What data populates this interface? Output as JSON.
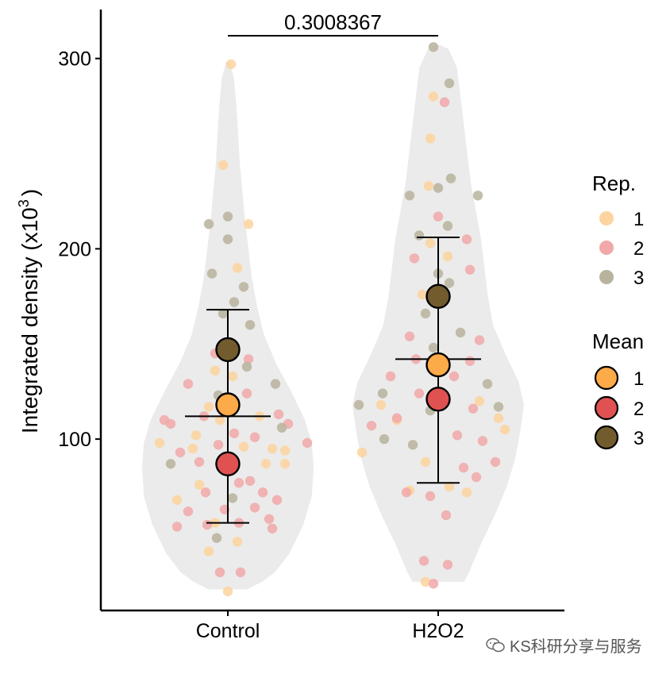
{
  "chart_data": {
    "type": "violin-dotplot",
    "categories": [
      "Control",
      "H2O2"
    ],
    "ylabel_main": "Integrated density (x10",
    "ylabel_sup": "3",
    "ylabel_end": ")",
    "xlabel": "",
    "ylim": [
      15,
      320
    ],
    "yticks": [
      "100",
      "200",
      "300"
    ],
    "ytick_values": [
      100,
      200,
      300
    ],
    "comparison": {
      "label": "0.3008367",
      "from": "Control",
      "to": "H2O2"
    },
    "rep_colors": {
      "1": "#FDD49E",
      "2": "#F1A8A8",
      "3": "#B7B39C"
    },
    "mean_colors": {
      "1": "#FDAA48",
      "2": "#E05252",
      "3": "#725C2E"
    },
    "legend": {
      "rep_title": "Rep.",
      "rep_entries": [
        "1",
        "2",
        "3"
      ],
      "mean_title": "Mean",
      "mean_entries": [
        "1",
        "2",
        "3"
      ]
    },
    "summary": [
      {
        "group": "Control",
        "mean": 112,
        "lower": 56,
        "upper": 168
      },
      {
        "group": "H2O2",
        "mean": 142,
        "lower": 77,
        "upper": 206
      }
    ],
    "replicate_means": [
      {
        "group": "Control",
        "rep": "1",
        "value": 118
      },
      {
        "group": "Control",
        "rep": "2",
        "value": 87
      },
      {
        "group": "Control",
        "rep": "3",
        "value": 147
      },
      {
        "group": "H2O2",
        "rep": "1",
        "value": 139
      },
      {
        "group": "H2O2",
        "rep": "2",
        "value": 121
      },
      {
        "group": "H2O2",
        "rep": "3",
        "value": 175
      }
    ],
    "violins": [
      {
        "group": "Control",
        "y": [
          21,
          25,
          30,
          40,
          55,
          70,
          85,
          98,
          110,
          125,
          140,
          155,
          170,
          185,
          200,
          215,
          230,
          245,
          260,
          275,
          290,
          298
        ],
        "width": [
          0.22,
          0.4,
          0.55,
          0.72,
          0.88,
          0.98,
          1.0,
          0.98,
          0.9,
          0.74,
          0.56,
          0.42,
          0.34,
          0.28,
          0.24,
          0.2,
          0.17,
          0.14,
          0.12,
          0.1,
          0.07,
          0.02
        ]
      },
      {
        "group": "H2O2",
        "y": [
          25,
          30,
          45,
          60,
          75,
          90,
          105,
          118,
          130,
          145,
          160,
          175,
          190,
          205,
          220,
          235,
          250,
          265,
          280,
          295,
          305,
          307
        ],
        "width": [
          0.3,
          0.36,
          0.5,
          0.66,
          0.8,
          0.9,
          0.96,
          1.0,
          0.94,
          0.78,
          0.64,
          0.58,
          0.54,
          0.5,
          0.44,
          0.38,
          0.34,
          0.3,
          0.26,
          0.22,
          0.12,
          0.02
        ]
      }
    ],
    "points": [
      {
        "g": "Control",
        "r": "1",
        "x": -0.43,
        "y": 98
      },
      {
        "g": "Control",
        "r": "1",
        "x": -0.32,
        "y": 68
      },
      {
        "g": "Control",
        "r": "1",
        "x": -0.22,
        "y": 95
      },
      {
        "g": "Control",
        "r": "1",
        "x": -0.2,
        "y": 102
      },
      {
        "g": "Control",
        "r": "1",
        "x": -0.18,
        "y": 76
      },
      {
        "g": "Control",
        "r": "1",
        "x": -0.12,
        "y": 117
      },
      {
        "g": "Control",
        "r": "1",
        "x": -0.12,
        "y": 41
      },
      {
        "g": "Control",
        "r": "1",
        "x": -0.08,
        "y": 56
      },
      {
        "g": "Control",
        "r": "1",
        "x": -0.03,
        "y": 244
      },
      {
        "g": "Control",
        "r": "1",
        "x": -0.08,
        "y": 136
      },
      {
        "g": "Control",
        "r": "1",
        "x": 0.0,
        "y": 20
      },
      {
        "g": "Control",
        "r": "1",
        "x": 0.02,
        "y": 297
      },
      {
        "g": "Control",
        "r": "1",
        "x": 0.03,
        "y": 133
      },
      {
        "g": "Control",
        "r": "1",
        "x": 0.06,
        "y": 190
      },
      {
        "g": "Control",
        "r": "1",
        "x": 0.06,
        "y": 46
      },
      {
        "g": "Control",
        "r": "1",
        "x": 0.13,
        "y": 213
      },
      {
        "g": "Control",
        "r": "1",
        "x": 0.2,
        "y": 112
      },
      {
        "g": "Control",
        "r": "1",
        "x": 0.24,
        "y": 87
      },
      {
        "g": "Control",
        "r": "1",
        "x": 0.28,
        "y": 95
      },
      {
        "g": "Control",
        "r": "1",
        "x": 0.36,
        "y": 94
      },
      {
        "g": "Control",
        "r": "1",
        "x": 0.36,
        "y": 87
      },
      {
        "g": "Control",
        "r": "1",
        "x": -0.05,
        "y": 110
      },
      {
        "g": "Control",
        "r": "1",
        "x": 0.1,
        "y": 96
      },
      {
        "g": "Control",
        "r": "2",
        "x": -0.4,
        "y": 110
      },
      {
        "g": "Control",
        "r": "2",
        "x": -0.36,
        "y": 108
      },
      {
        "g": "Control",
        "r": "2",
        "x": -0.3,
        "y": 93
      },
      {
        "g": "Control",
        "r": "2",
        "x": -0.32,
        "y": 54
      },
      {
        "g": "Control",
        "r": "2",
        "x": -0.25,
        "y": 62
      },
      {
        "g": "Control",
        "r": "2",
        "x": -0.25,
        "y": 129
      },
      {
        "g": "Control",
        "r": "2",
        "x": -0.18,
        "y": 88
      },
      {
        "g": "Control",
        "r": "2",
        "x": -0.15,
        "y": 112
      },
      {
        "g": "Control",
        "r": "2",
        "x": -0.14,
        "y": 72
      },
      {
        "g": "Control",
        "r": "2",
        "x": -0.13,
        "y": 55
      },
      {
        "g": "Control",
        "r": "2",
        "x": -0.08,
        "y": 145
      },
      {
        "g": "Control",
        "r": "2",
        "x": -0.06,
        "y": 97
      },
      {
        "g": "Control",
        "r": "2",
        "x": -0.05,
        "y": 30
      },
      {
        "g": "Control",
        "r": "2",
        "x": -0.04,
        "y": 86
      },
      {
        "g": "Control",
        "r": "2",
        "x": -0.02,
        "y": 63
      },
      {
        "g": "Control",
        "r": "2",
        "x": 0.04,
        "y": 103
      },
      {
        "g": "Control",
        "r": "2",
        "x": 0.07,
        "y": 56
      },
      {
        "g": "Control",
        "r": "2",
        "x": 0.07,
        "y": 77
      },
      {
        "g": "Control",
        "r": "2",
        "x": 0.08,
        "y": 30
      },
      {
        "g": "Control",
        "r": "2",
        "x": 0.13,
        "y": 142
      },
      {
        "g": "Control",
        "r": "2",
        "x": 0.12,
        "y": 124
      },
      {
        "g": "Control",
        "r": "2",
        "x": 0.14,
        "y": 78
      },
      {
        "g": "Control",
        "r": "2",
        "x": 0.17,
        "y": 64
      },
      {
        "g": "Control",
        "r": "2",
        "x": 0.17,
        "y": 101
      },
      {
        "g": "Control",
        "r": "2",
        "x": 0.22,
        "y": 72
      },
      {
        "g": "Control",
        "r": "2",
        "x": 0.26,
        "y": 58
      },
      {
        "g": "Control",
        "r": "2",
        "x": 0.32,
        "y": 113
      },
      {
        "g": "Control",
        "r": "2",
        "x": 0.31,
        "y": 68
      },
      {
        "g": "Control",
        "r": "2",
        "x": 0.38,
        "y": 108
      },
      {
        "g": "Control",
        "r": "2",
        "x": 0.28,
        "y": 53
      },
      {
        "g": "Control",
        "r": "2",
        "x": 0.5,
        "y": 98
      },
      {
        "g": "Control",
        "r": "3",
        "x": -0.36,
        "y": 87
      },
      {
        "g": "Control",
        "r": "3",
        "x": -0.12,
        "y": 213
      },
      {
        "g": "Control",
        "r": "3",
        "x": -0.1,
        "y": 187
      },
      {
        "g": "Control",
        "r": "3",
        "x": -0.03,
        "y": 166
      },
      {
        "g": "Control",
        "r": "3",
        "x": -0.06,
        "y": 123
      },
      {
        "g": "Control",
        "r": "3",
        "x": -0.05,
        "y": 87
      },
      {
        "g": "Control",
        "r": "3",
        "x": -0.07,
        "y": 48
      },
      {
        "g": "Control",
        "r": "3",
        "x": 0.0,
        "y": 205
      },
      {
        "g": "Control",
        "r": "3",
        "x": 0.0,
        "y": 217
      },
      {
        "g": "Control",
        "r": "3",
        "x": 0.04,
        "y": 172
      },
      {
        "g": "Control",
        "r": "3",
        "x": 0.03,
        "y": 69
      },
      {
        "g": "Control",
        "r": "3",
        "x": 0.1,
        "y": 180
      },
      {
        "g": "Control",
        "r": "3",
        "x": 0.14,
        "y": 160
      },
      {
        "g": "Control",
        "r": "3",
        "x": 0.12,
        "y": 138
      },
      {
        "g": "Control",
        "r": "3",
        "x": 0.3,
        "y": 129
      },
      {
        "g": "Control",
        "r": "3",
        "x": 0.34,
        "y": 106
      },
      {
        "g": "H2O2",
        "r": "1",
        "x": -0.48,
        "y": 93
      },
      {
        "g": "H2O2",
        "r": "1",
        "x": -0.26,
        "y": 110
      },
      {
        "g": "H2O2",
        "r": "1",
        "x": -0.18,
        "y": 73
      },
      {
        "g": "H2O2",
        "r": "1",
        "x": -0.1,
        "y": 176
      },
      {
        "g": "H2O2",
        "r": "1",
        "x": -0.08,
        "y": 88
      },
      {
        "g": "H2O2",
        "r": "1",
        "x": -0.08,
        "y": 25
      },
      {
        "g": "H2O2",
        "r": "1",
        "x": -0.06,
        "y": 233
      },
      {
        "g": "H2O2",
        "r": "1",
        "x": -0.05,
        "y": 258
      },
      {
        "g": "H2O2",
        "r": "1",
        "x": -0.03,
        "y": 280
      },
      {
        "g": "H2O2",
        "r": "1",
        "x": -0.05,
        "y": 203
      },
      {
        "g": "H2O2",
        "r": "1",
        "x": 0.06,
        "y": 196
      },
      {
        "g": "H2O2",
        "r": "1",
        "x": 0.07,
        "y": 75
      },
      {
        "g": "H2O2",
        "r": "1",
        "x": 0.18,
        "y": 72
      },
      {
        "g": "H2O2",
        "r": "1",
        "x": 0.26,
        "y": 120
      },
      {
        "g": "H2O2",
        "r": "1",
        "x": 0.38,
        "y": 111
      },
      {
        "g": "H2O2",
        "r": "1",
        "x": 0.42,
        "y": 105
      },
      {
        "g": "H2O2",
        "r": "1",
        "x": -0.36,
        "y": 118
      },
      {
        "g": "H2O2",
        "r": "2",
        "x": -0.42,
        "y": 107
      },
      {
        "g": "H2O2",
        "r": "2",
        "x": -0.3,
        "y": 133
      },
      {
        "g": "H2O2",
        "r": "2",
        "x": -0.26,
        "y": 111
      },
      {
        "g": "H2O2",
        "r": "2",
        "x": -0.2,
        "y": 72
      },
      {
        "g": "H2O2",
        "r": "2",
        "x": -0.15,
        "y": 195
      },
      {
        "g": "H2O2",
        "r": "2",
        "x": -0.18,
        "y": 154
      },
      {
        "g": "H2O2",
        "r": "2",
        "x": -0.12,
        "y": 124
      },
      {
        "g": "H2O2",
        "r": "2",
        "x": -0.09,
        "y": 36
      },
      {
        "g": "H2O2",
        "r": "2",
        "x": -0.05,
        "y": 70
      },
      {
        "g": "H2O2",
        "r": "2",
        "x": 0.0,
        "y": 217
      },
      {
        "g": "H2O2",
        "r": "2",
        "x": 0.04,
        "y": 277
      },
      {
        "g": "H2O2",
        "r": "2",
        "x": 0.05,
        "y": 60
      },
      {
        "g": "H2O2",
        "r": "2",
        "x": 0.06,
        "y": 34
      },
      {
        "g": "H2O2",
        "r": "2",
        "x": 0.1,
        "y": 133
      },
      {
        "g": "H2O2",
        "r": "2",
        "x": 0.12,
        "y": 102
      },
      {
        "g": "H2O2",
        "r": "2",
        "x": 0.16,
        "y": 85
      },
      {
        "g": "H2O2",
        "r": "2",
        "x": 0.18,
        "y": 205
      },
      {
        "g": "H2O2",
        "r": "2",
        "x": 0.2,
        "y": 189
      },
      {
        "g": "H2O2",
        "r": "2",
        "x": 0.2,
        "y": 141
      },
      {
        "g": "H2O2",
        "r": "2",
        "x": 0.22,
        "y": 116
      },
      {
        "g": "H2O2",
        "r": "2",
        "x": 0.24,
        "y": 80
      },
      {
        "g": "H2O2",
        "r": "2",
        "x": 0.26,
        "y": 152
      },
      {
        "g": "H2O2",
        "r": "2",
        "x": 0.28,
        "y": 99
      },
      {
        "g": "H2O2",
        "r": "2",
        "x": 0.36,
        "y": 88
      },
      {
        "g": "H2O2",
        "r": "2",
        "x": -0.03,
        "y": 24
      },
      {
        "g": "H2O2",
        "r": "2",
        "x": -0.14,
        "y": 142
      },
      {
        "g": "H2O2",
        "r": "3",
        "x": -0.5,
        "y": 118
      },
      {
        "g": "H2O2",
        "r": "3",
        "x": -0.35,
        "y": 124
      },
      {
        "g": "H2O2",
        "r": "3",
        "x": -0.34,
        "y": 100
      },
      {
        "g": "H2O2",
        "r": "3",
        "x": -0.18,
        "y": 228
      },
      {
        "g": "H2O2",
        "r": "3",
        "x": -0.16,
        "y": 97
      },
      {
        "g": "H2O2",
        "r": "3",
        "x": -0.12,
        "y": 207
      },
      {
        "g": "H2O2",
        "r": "3",
        "x": -0.08,
        "y": 166
      },
      {
        "g": "H2O2",
        "r": "3",
        "x": -0.03,
        "y": 148
      },
      {
        "g": "H2O2",
        "r": "3",
        "x": -0.03,
        "y": 306
      },
      {
        "g": "H2O2",
        "r": "3",
        "x": 0.0,
        "y": 187
      },
      {
        "g": "H2O2",
        "r": "3",
        "x": 0.0,
        "y": 232
      },
      {
        "g": "H2O2",
        "r": "3",
        "x": 0.06,
        "y": 212
      },
      {
        "g": "H2O2",
        "r": "3",
        "x": 0.07,
        "y": 182
      },
      {
        "g": "H2O2",
        "r": "3",
        "x": 0.08,
        "y": 237
      },
      {
        "g": "H2O2",
        "r": "3",
        "x": 0.07,
        "y": 287
      },
      {
        "g": "H2O2",
        "r": "3",
        "x": 0.14,
        "y": 156
      },
      {
        "g": "H2O2",
        "r": "3",
        "x": 0.25,
        "y": 228
      },
      {
        "g": "H2O2",
        "r": "3",
        "x": 0.31,
        "y": 129
      },
      {
        "g": "H2O2",
        "r": "3",
        "x": 0.38,
        "y": 117
      },
      {
        "g": "H2O2",
        "r": "3",
        "x": -0.05,
        "y": 115
      }
    ]
  },
  "watermark": {
    "text": "KS科研分享与服务"
  }
}
